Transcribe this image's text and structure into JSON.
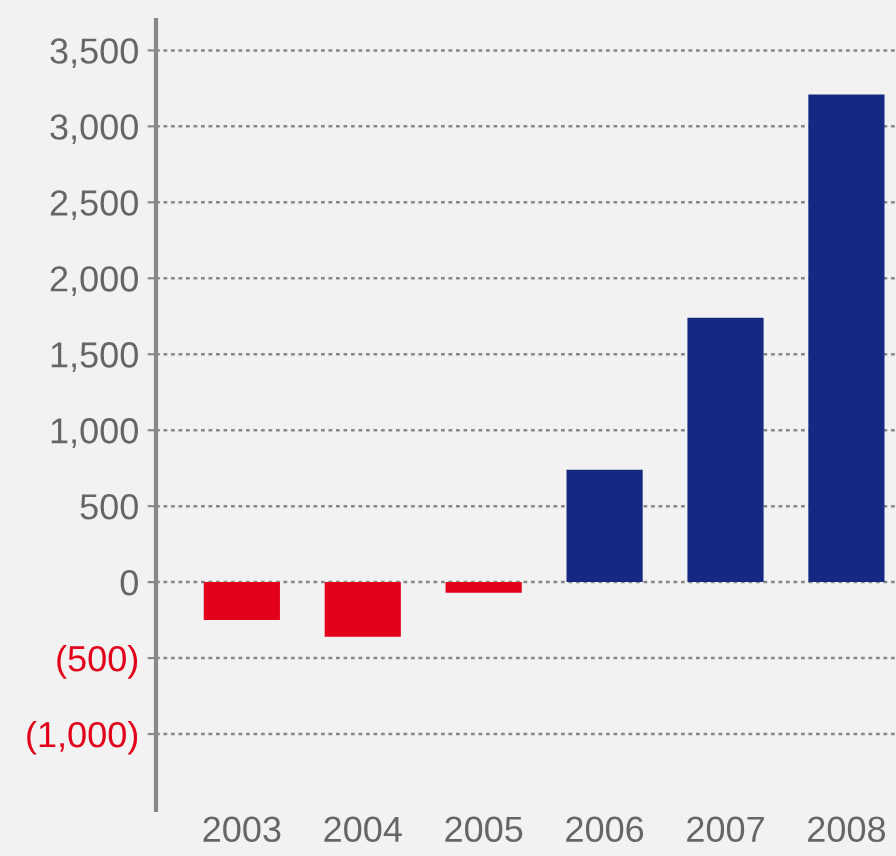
{
  "chart_data": {
    "type": "bar",
    "categories": [
      "2003",
      "2004",
      "2005",
      "2006",
      "2007",
      "2008"
    ],
    "values": [
      -250,
      -360,
      -70,
      740,
      1740,
      3210
    ],
    "colors": [
      "#e2001a",
      "#e2001a",
      "#e2001a",
      "#152982",
      "#152982",
      "#152982"
    ],
    "ylim": [
      -1500,
      3700
    ],
    "yticks": [
      {
        "value": -1000,
        "label": "(1,000)"
      },
      {
        "value": -500,
        "label": "(500)"
      },
      0,
      {
        "value": 500,
        "label": "500"
      },
      {
        "value": 1000,
        "label": "1,000"
      },
      {
        "value": 1500,
        "label": "1,500"
      },
      {
        "value": 2000,
        "label": "2,000"
      },
      {
        "value": 2500,
        "label": "2,500"
      },
      {
        "value": 3000,
        "label": "3,000"
      },
      {
        "value": 3500,
        "label": "3,500"
      }
    ],
    "grid": "y"
  }
}
